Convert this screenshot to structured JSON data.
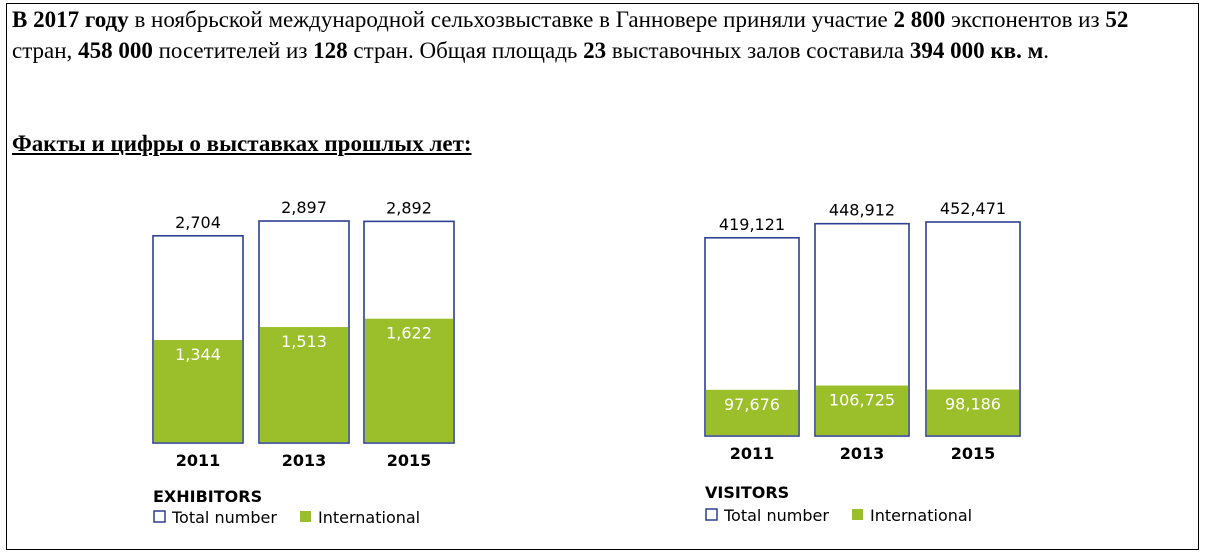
{
  "intro": {
    "parts": [
      {
        "t": "В 2017 году",
        "b": true
      },
      {
        "t": " в ноябрьской международной сельхозвыставке в Ганновере приняли участие ",
        "b": false
      },
      {
        "t": "2 800",
        "b": true
      },
      {
        "t": " экспонентов из ",
        "b": false
      },
      {
        "t": "52",
        "b": true
      },
      {
        "t": " стран, ",
        "b": false
      },
      {
        "t": "458 000",
        "b": true
      },
      {
        "t": " посетителей из ",
        "b": false
      },
      {
        "t": "128",
        "b": true
      },
      {
        "t": " стран. Общая площадь ",
        "b": false
      },
      {
        "t": "23",
        "b": true
      },
      {
        "t": " выставочных залов составила ",
        "b": false
      },
      {
        "t": "394 000 кв. м",
        "b": true
      },
      {
        "t": ".",
        "b": false
      }
    ]
  },
  "facts_heading": "Факты и цифры о выставках прошлых лет:",
  "colors": {
    "total_border": "#2b3f93",
    "international_fill": "#9bbf2a"
  },
  "chart_data": [
    {
      "type": "bar",
      "title": "EXHIBITORS",
      "categories": [
        "2011",
        "2013",
        "2015"
      ],
      "series": [
        {
          "name": "Total number",
          "values": [
            2704,
            2897,
            2892
          ],
          "labels": [
            "2,704",
            "2,897",
            "2,892"
          ]
        },
        {
          "name": "International",
          "values": [
            1344,
            1513,
            1622
          ],
          "labels": [
            "1,344",
            "1,513",
            "1,622"
          ]
        }
      ],
      "legend": "bottom-left",
      "grid": false
    },
    {
      "type": "bar",
      "title": "VISITORS",
      "categories": [
        "2011",
        "2013",
        "2015"
      ],
      "series": [
        {
          "name": "Total number",
          "values": [
            419121,
            448912,
            452471
          ],
          "labels": [
            "419,121",
            "448,912",
            "452,471"
          ]
        },
        {
          "name": "International",
          "values": [
            97676,
            106725,
            98186
          ],
          "labels": [
            "97,676",
            "106,725",
            "98,186"
          ]
        }
      ],
      "legend": "bottom-left",
      "grid": false
    }
  ]
}
